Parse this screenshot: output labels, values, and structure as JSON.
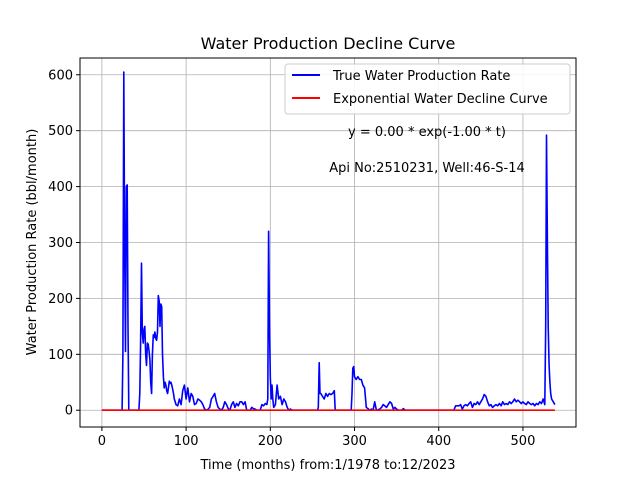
{
  "chart_data": {
    "type": "line",
    "title": "Water Production Decline Curve",
    "xlabel": "Time (months) from:1/1978 to:12/2023",
    "ylabel": "Water Production Rate (bbl/month)",
    "xlim": [
      -26,
      563
    ],
    "ylim": [
      -30,
      630
    ],
    "xticks": [
      0,
      100,
      200,
      300,
      400,
      500
    ],
    "yticks": [
      0,
      100,
      200,
      300,
      400,
      500,
      600
    ],
    "grid": true,
    "legend_position": "top-right",
    "annotations": [
      "y = 0.00 * exp(-1.00 * t)",
      "Api No:2510231, Well:46-S-14"
    ],
    "series": [
      {
        "name": "True Water Production Rate",
        "color": "#0000ff",
        "points": [
          [
            0,
            0
          ],
          [
            24,
            0
          ],
          [
            25,
            100
          ],
          [
            26,
            605
          ],
          [
            27,
            300
          ],
          [
            28,
            105
          ],
          [
            29,
            400
          ],
          [
            30,
            403
          ],
          [
            31,
            150
          ],
          [
            32,
            0
          ],
          [
            44,
            0
          ],
          [
            45,
            30
          ],
          [
            46,
            120
          ],
          [
            47,
            263
          ],
          [
            48,
            140
          ],
          [
            49,
            120
          ],
          [
            50,
            145
          ],
          [
            51,
            150
          ],
          [
            52,
            100
          ],
          [
            53,
            80
          ],
          [
            54,
            120
          ],
          [
            55,
            118
          ],
          [
            56,
            105
          ],
          [
            57,
            90
          ],
          [
            58,
            50
          ],
          [
            59,
            30
          ],
          [
            60,
            100
          ],
          [
            61,
            135
          ],
          [
            62,
            130
          ],
          [
            63,
            140
          ],
          [
            64,
            128
          ],
          [
            65,
            125
          ],
          [
            66,
            140
          ],
          [
            67,
            205
          ],
          [
            68,
            195
          ],
          [
            69,
            150
          ],
          [
            70,
            190
          ],
          [
            71,
            185
          ],
          [
            72,
            100
          ],
          [
            73,
            60
          ],
          [
            74,
            40
          ],
          [
            75,
            50
          ],
          [
            76,
            45
          ],
          [
            77,
            35
          ],
          [
            78,
            30
          ],
          [
            79,
            40
          ],
          [
            80,
            52
          ],
          [
            81,
            48
          ],
          [
            82,
            50
          ],
          [
            83,
            45
          ],
          [
            84,
            38
          ],
          [
            85,
            30
          ],
          [
            86,
            20
          ],
          [
            87,
            15
          ],
          [
            88,
            10
          ],
          [
            90,
            8
          ],
          [
            92,
            20
          ],
          [
            94,
            10
          ],
          [
            96,
            35
          ],
          [
            98,
            45
          ],
          [
            100,
            20
          ],
          [
            102,
            40
          ],
          [
            104,
            15
          ],
          [
            106,
            30
          ],
          [
            108,
            25
          ],
          [
            110,
            10
          ],
          [
            112,
            12
          ],
          [
            114,
            20
          ],
          [
            116,
            18
          ],
          [
            118,
            15
          ],
          [
            120,
            10
          ],
          [
            122,
            2
          ],
          [
            125,
            0
          ],
          [
            128,
            5
          ],
          [
            130,
            20
          ],
          [
            132,
            25
          ],
          [
            134,
            30
          ],
          [
            136,
            15
          ],
          [
            138,
            5
          ],
          [
            140,
            2
          ],
          [
            142,
            0
          ],
          [
            144,
            5
          ],
          [
            146,
            15
          ],
          [
            148,
            10
          ],
          [
            150,
            3
          ],
          [
            152,
            0
          ],
          [
            154,
            10
          ],
          [
            156,
            15
          ],
          [
            158,
            5
          ],
          [
            160,
            12
          ],
          [
            162,
            8
          ],
          [
            164,
            15
          ],
          [
            166,
            15
          ],
          [
            168,
            10
          ],
          [
            170,
            15
          ],
          [
            172,
            0
          ],
          [
            176,
            0
          ],
          [
            178,
            5
          ],
          [
            180,
            3
          ],
          [
            182,
            2
          ],
          [
            184,
            0
          ],
          [
            188,
            0
          ],
          [
            190,
            10
          ],
          [
            192,
            8
          ],
          [
            194,
            12
          ],
          [
            196,
            10
          ],
          [
            197,
            20
          ],
          [
            198,
            320
          ],
          [
            199,
            150
          ],
          [
            200,
            60
          ],
          [
            201,
            20
          ],
          [
            202,
            45
          ],
          [
            203,
            20
          ],
          [
            204,
            5
          ],
          [
            206,
            10
          ],
          [
            208,
            45
          ],
          [
            210,
            20
          ],
          [
            212,
            25
          ],
          [
            214,
            10
          ],
          [
            216,
            20
          ],
          [
            218,
            15
          ],
          [
            220,
            5
          ],
          [
            222,
            0
          ],
          [
            224,
            2
          ],
          [
            226,
            0
          ],
          [
            256,
            0
          ],
          [
            257,
            5
          ],
          [
            258,
            85
          ],
          [
            259,
            30
          ],
          [
            260,
            30
          ],
          [
            262,
            25
          ],
          [
            264,
            20
          ],
          [
            266,
            30
          ],
          [
            268,
            25
          ],
          [
            270,
            30
          ],
          [
            272,
            28
          ],
          [
            274,
            30
          ],
          [
            276,
            35
          ],
          [
            277,
            0
          ],
          [
            296,
            0
          ],
          [
            297,
            30
          ],
          [
            298,
            75
          ],
          [
            299,
            78
          ],
          [
            300,
            60
          ],
          [
            302,
            55
          ],
          [
            304,
            60
          ],
          [
            306,
            55
          ],
          [
            308,
            55
          ],
          [
            310,
            45
          ],
          [
            312,
            40
          ],
          [
            314,
            5
          ],
          [
            316,
            3
          ],
          [
            318,
            0
          ],
          [
            320,
            2
          ],
          [
            322,
            0
          ],
          [
            324,
            15
          ],
          [
            326,
            0
          ],
          [
            330,
            2
          ],
          [
            332,
            5
          ],
          [
            334,
            10
          ],
          [
            336,
            8
          ],
          [
            338,
            5
          ],
          [
            340,
            10
          ],
          [
            342,
            15
          ],
          [
            344,
            12
          ],
          [
            346,
            2
          ],
          [
            348,
            5
          ],
          [
            350,
            2
          ],
          [
            352,
            0
          ],
          [
            356,
            0
          ],
          [
            358,
            3
          ],
          [
            360,
            0
          ],
          [
            418,
            0
          ],
          [
            420,
            8
          ],
          [
            422,
            8
          ],
          [
            424,
            8
          ],
          [
            426,
            10
          ],
          [
            428,
            2
          ],
          [
            430,
            8
          ],
          [
            432,
            10
          ],
          [
            434,
            8
          ],
          [
            436,
            12
          ],
          [
            438,
            15
          ],
          [
            440,
            5
          ],
          [
            442,
            12
          ],
          [
            444,
            10
          ],
          [
            446,
            15
          ],
          [
            448,
            10
          ],
          [
            450,
            15
          ],
          [
            452,
            20
          ],
          [
            454,
            28
          ],
          [
            456,
            25
          ],
          [
            458,
            15
          ],
          [
            460,
            8
          ],
          [
            462,
            10
          ],
          [
            464,
            5
          ],
          [
            466,
            8
          ],
          [
            468,
            10
          ],
          [
            470,
            8
          ],
          [
            472,
            12
          ],
          [
            474,
            8
          ],
          [
            476,
            15
          ],
          [
            478,
            10
          ],
          [
            480,
            12
          ],
          [
            482,
            10
          ],
          [
            484,
            15
          ],
          [
            486,
            12
          ],
          [
            488,
            15
          ],
          [
            490,
            20
          ],
          [
            492,
            15
          ],
          [
            494,
            18
          ],
          [
            496,
            15
          ],
          [
            498,
            12
          ],
          [
            500,
            15
          ],
          [
            502,
            12
          ],
          [
            504,
            10
          ],
          [
            506,
            15
          ],
          [
            508,
            12
          ],
          [
            510,
            10
          ],
          [
            512,
            12
          ],
          [
            514,
            8
          ],
          [
            516,
            12
          ],
          [
            518,
            10
          ],
          [
            520,
            15
          ],
          [
            522,
            12
          ],
          [
            524,
            20
          ],
          [
            526,
            10
          ],
          [
            527,
            150
          ],
          [
            528,
            492
          ],
          [
            529,
            300
          ],
          [
            530,
            150
          ],
          [
            531,
            80
          ],
          [
            532,
            50
          ],
          [
            533,
            30
          ],
          [
            534,
            20
          ],
          [
            536,
            15
          ],
          [
            538,
            10
          ]
        ]
      },
      {
        "name": "Exponential Water Decline Curve",
        "color": "#ff0000",
        "points": [
          [
            0,
            0
          ],
          [
            538,
            0
          ]
        ]
      }
    ]
  }
}
